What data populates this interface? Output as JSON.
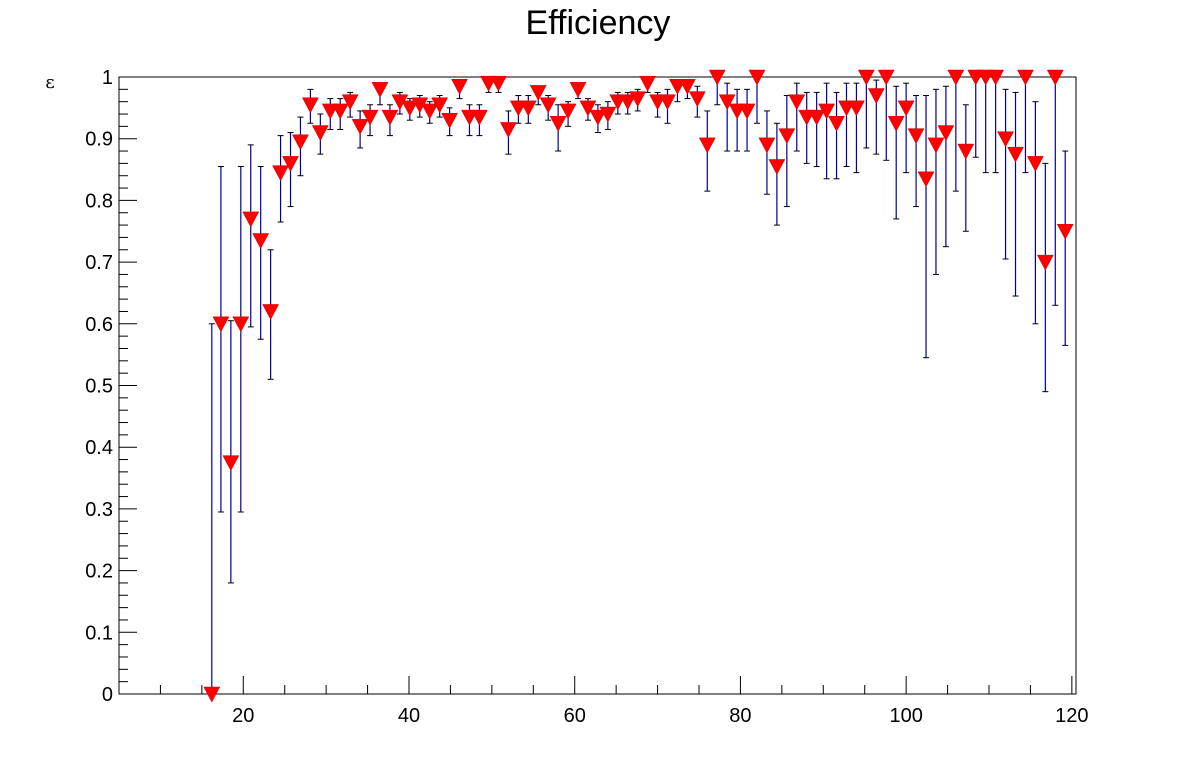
{
  "chart_data": {
    "type": "scatter",
    "title": "Efficiency",
    "xlabel": "",
    "ylabel": "ε",
    "xlim": [
      5,
      120.5
    ],
    "ylim": [
      0,
      1
    ],
    "x_ticks": [
      20,
      40,
      60,
      80,
      100,
      120
    ],
    "y_ticks": [
      0,
      0.1,
      0.2,
      0.3,
      0.4,
      0.5,
      0.6,
      0.7,
      0.8,
      0.9,
      1
    ],
    "x_tick_labels": [
      "20",
      "40",
      "60",
      "80",
      "100",
      "120"
    ],
    "y_tick_labels": [
      "0",
      "0.1",
      "0.2",
      "0.3",
      "0.4",
      "0.5",
      "0.6",
      "0.7",
      "0.8",
      "0.9",
      "1"
    ],
    "grid": false,
    "marker": "down-triangle",
    "marker_color": "#ff0000",
    "error_bar_color": "#000099",
    "points": [
      {
        "x": 16.2,
        "y": 0.0,
        "lo": 0.0,
        "hi": 0.6
      },
      {
        "x": 17.3,
        "y": 0.6,
        "lo": 0.295,
        "hi": 0.855
      },
      {
        "x": 18.5,
        "y": 0.375,
        "lo": 0.18,
        "hi": 0.605
      },
      {
        "x": 19.7,
        "y": 0.6,
        "lo": 0.295,
        "hi": 0.855
      },
      {
        "x": 20.9,
        "y": 0.77,
        "lo": 0.595,
        "hi": 0.89
      },
      {
        "x": 22.1,
        "y": 0.735,
        "lo": 0.575,
        "hi": 0.855
      },
      {
        "x": 23.3,
        "y": 0.62,
        "lo": 0.51,
        "hi": 0.72
      },
      {
        "x": 24.5,
        "y": 0.845,
        "lo": 0.765,
        "hi": 0.905
      },
      {
        "x": 25.7,
        "y": 0.86,
        "lo": 0.79,
        "hi": 0.91
      },
      {
        "x": 26.9,
        "y": 0.895,
        "lo": 0.84,
        "hi": 0.935
      },
      {
        "x": 28.1,
        "y": 0.955,
        "lo": 0.925,
        "hi": 0.98
      },
      {
        "x": 29.3,
        "y": 0.91,
        "lo": 0.875,
        "hi": 0.94
      },
      {
        "x": 30.5,
        "y": 0.945,
        "lo": 0.915,
        "hi": 0.965
      },
      {
        "x": 31.7,
        "y": 0.945,
        "lo": 0.915,
        "hi": 0.965
      },
      {
        "x": 32.9,
        "y": 0.96,
        "lo": 0.935,
        "hi": 0.975
      },
      {
        "x": 34.1,
        "y": 0.92,
        "lo": 0.885,
        "hi": 0.945
      },
      {
        "x": 35.3,
        "y": 0.935,
        "lo": 0.905,
        "hi": 0.955
      },
      {
        "x": 36.5,
        "y": 0.98,
        "lo": 0.955,
        "hi": 0.99
      },
      {
        "x": 37.7,
        "y": 0.935,
        "lo": 0.905,
        "hi": 0.955
      },
      {
        "x": 38.9,
        "y": 0.96,
        "lo": 0.94,
        "hi": 0.975
      },
      {
        "x": 40.1,
        "y": 0.95,
        "lo": 0.93,
        "hi": 0.965
      },
      {
        "x": 41.3,
        "y": 0.955,
        "lo": 0.935,
        "hi": 0.97
      },
      {
        "x": 42.5,
        "y": 0.945,
        "lo": 0.925,
        "hi": 0.96
      },
      {
        "x": 43.7,
        "y": 0.955,
        "lo": 0.935,
        "hi": 0.97
      },
      {
        "x": 44.9,
        "y": 0.93,
        "lo": 0.905,
        "hi": 0.95
      },
      {
        "x": 46.1,
        "y": 0.985,
        "lo": 0.965,
        "hi": 0.995
      },
      {
        "x": 47.3,
        "y": 0.935,
        "lo": 0.905,
        "hi": 0.955
      },
      {
        "x": 48.5,
        "y": 0.935,
        "lo": 0.905,
        "hi": 0.955
      },
      {
        "x": 49.6,
        "y": 0.99,
        "lo": 0.975,
        "hi": 1.0
      },
      {
        "x": 50.8,
        "y": 0.99,
        "lo": 0.975,
        "hi": 1.0
      },
      {
        "x": 52.0,
        "y": 0.915,
        "lo": 0.875,
        "hi": 0.945
      },
      {
        "x": 53.2,
        "y": 0.95,
        "lo": 0.925,
        "hi": 0.97
      },
      {
        "x": 54.4,
        "y": 0.95,
        "lo": 0.925,
        "hi": 0.97
      },
      {
        "x": 55.6,
        "y": 0.975,
        "lo": 0.955,
        "hi": 0.985
      },
      {
        "x": 56.8,
        "y": 0.955,
        "lo": 0.93,
        "hi": 0.97
      },
      {
        "x": 58.0,
        "y": 0.925,
        "lo": 0.88,
        "hi": 0.955
      },
      {
        "x": 59.2,
        "y": 0.945,
        "lo": 0.92,
        "hi": 0.96
      },
      {
        "x": 60.4,
        "y": 0.98,
        "lo": 0.965,
        "hi": 0.99
      },
      {
        "x": 61.6,
        "y": 0.95,
        "lo": 0.93,
        "hi": 0.965
      },
      {
        "x": 62.8,
        "y": 0.935,
        "lo": 0.91,
        "hi": 0.955
      },
      {
        "x": 64.0,
        "y": 0.94,
        "lo": 0.915,
        "hi": 0.96
      },
      {
        "x": 65.2,
        "y": 0.96,
        "lo": 0.94,
        "hi": 0.975
      },
      {
        "x": 66.4,
        "y": 0.96,
        "lo": 0.94,
        "hi": 0.975
      },
      {
        "x": 67.6,
        "y": 0.965,
        "lo": 0.945,
        "hi": 0.98
      },
      {
        "x": 68.8,
        "y": 0.99,
        "lo": 0.975,
        "hi": 1.0
      },
      {
        "x": 70.0,
        "y": 0.96,
        "lo": 0.935,
        "hi": 0.975
      },
      {
        "x": 71.2,
        "y": 0.96,
        "lo": 0.925,
        "hi": 0.98
      },
      {
        "x": 72.4,
        "y": 0.985,
        "lo": 0.96,
        "hi": 0.995
      },
      {
        "x": 73.6,
        "y": 0.985,
        "lo": 0.965,
        "hi": 0.995
      },
      {
        "x": 74.8,
        "y": 0.965,
        "lo": 0.935,
        "hi": 0.985
      },
      {
        "x": 76.0,
        "y": 0.89,
        "lo": 0.815,
        "hi": 0.945
      },
      {
        "x": 77.2,
        "y": 1.0,
        "lo": 0.955,
        "hi": 1.0
      },
      {
        "x": 78.4,
        "y": 0.96,
        "lo": 0.88,
        "hi": 0.99
      },
      {
        "x": 79.6,
        "y": 0.945,
        "lo": 0.88,
        "hi": 0.98
      },
      {
        "x": 80.8,
        "y": 0.945,
        "lo": 0.88,
        "hi": 0.98
      },
      {
        "x": 82.0,
        "y": 1.0,
        "lo": 0.925,
        "hi": 1.0
      },
      {
        "x": 83.2,
        "y": 0.89,
        "lo": 0.81,
        "hi": 0.945
      },
      {
        "x": 84.4,
        "y": 0.855,
        "lo": 0.76,
        "hi": 0.925
      },
      {
        "x": 85.6,
        "y": 0.905,
        "lo": 0.79,
        "hi": 0.97
      },
      {
        "x": 86.8,
        "y": 0.96,
        "lo": 0.88,
        "hi": 0.99
      },
      {
        "x": 88.0,
        "y": 0.935,
        "lo": 0.86,
        "hi": 0.975
      },
      {
        "x": 89.2,
        "y": 0.935,
        "lo": 0.855,
        "hi": 0.975
      },
      {
        "x": 90.4,
        "y": 0.945,
        "lo": 0.835,
        "hi": 0.99
      },
      {
        "x": 91.6,
        "y": 0.925,
        "lo": 0.835,
        "hi": 0.975
      },
      {
        "x": 92.8,
        "y": 0.95,
        "lo": 0.855,
        "hi": 0.99
      },
      {
        "x": 94.0,
        "y": 0.95,
        "lo": 0.845,
        "hi": 0.99
      },
      {
        "x": 95.2,
        "y": 1.0,
        "lo": 0.885,
        "hi": 1.0
      },
      {
        "x": 96.4,
        "y": 0.97,
        "lo": 0.875,
        "hi": 0.995
      },
      {
        "x": 97.6,
        "y": 1.0,
        "lo": 0.865,
        "hi": 1.0
      },
      {
        "x": 98.8,
        "y": 0.925,
        "lo": 0.77,
        "hi": 0.985
      },
      {
        "x": 100.0,
        "y": 0.95,
        "lo": 0.845,
        "hi": 0.99
      },
      {
        "x": 101.2,
        "y": 0.905,
        "lo": 0.79,
        "hi": 0.97
      },
      {
        "x": 102.4,
        "y": 0.835,
        "lo": 0.545,
        "hi": 0.97
      },
      {
        "x": 103.6,
        "y": 0.89,
        "lo": 0.68,
        "hi": 0.98
      },
      {
        "x": 104.8,
        "y": 0.91,
        "lo": 0.725,
        "hi": 0.985
      },
      {
        "x": 106.0,
        "y": 1.0,
        "lo": 0.815,
        "hi": 1.0
      },
      {
        "x": 107.2,
        "y": 0.88,
        "lo": 0.75,
        "hi": 0.955
      },
      {
        "x": 108.4,
        "y": 1.0,
        "lo": 0.87,
        "hi": 1.0
      },
      {
        "x": 109.6,
        "y": 1.0,
        "lo": 0.845,
        "hi": 1.0
      },
      {
        "x": 110.8,
        "y": 1.0,
        "lo": 0.845,
        "hi": 1.0
      },
      {
        "x": 112.0,
        "y": 0.9,
        "lo": 0.705,
        "hi": 0.98
      },
      {
        "x": 113.2,
        "y": 0.875,
        "lo": 0.645,
        "hi": 0.975
      },
      {
        "x": 114.4,
        "y": 1.0,
        "lo": 0.845,
        "hi": 1.0
      },
      {
        "x": 115.6,
        "y": 0.86,
        "lo": 0.6,
        "hi": 0.96
      },
      {
        "x": 116.8,
        "y": 0.7,
        "lo": 0.49,
        "hi": 0.86
      },
      {
        "x": 118.0,
        "y": 1.0,
        "lo": 0.63,
        "hi": 1.0
      },
      {
        "x": 119.2,
        "y": 0.75,
        "lo": 0.565,
        "hi": 0.88
      }
    ]
  }
}
